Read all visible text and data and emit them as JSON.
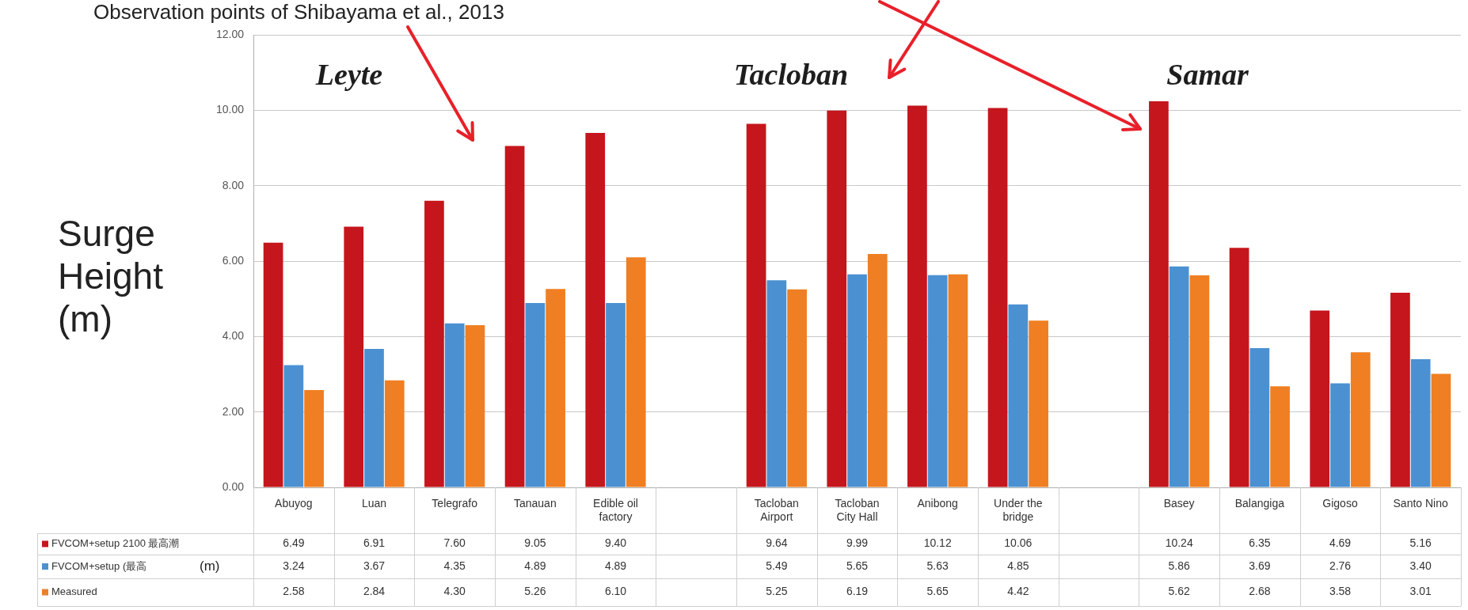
{
  "chart_data": {
    "type": "bar",
    "title": "Observation points of Shibayama et al., 2013",
    "ylabel": "Surge Height (m)",
    "categories": [
      "Abuyog",
      "Luan",
      "Telegrafo",
      "Tanauan",
      "Edible oil factory",
      null,
      "Tacloban Airport",
      "Tacloban City Hall",
      "Anibong",
      "Under the bridge",
      null,
      "Basey",
      "Balangiga",
      "Gigoso",
      "Santo Nino"
    ],
    "series": [
      {
        "name": "FVCOM+setup 2100 最高潮",
        "color": "#c4161c",
        "values": [
          6.49,
          6.91,
          7.6,
          9.05,
          9.4,
          null,
          9.64,
          9.99,
          10.12,
          10.06,
          null,
          10.24,
          6.35,
          4.69,
          5.16
        ],
        "value_labels": [
          "6.49",
          "6.91",
          "7.60",
          "9.05",
          "9.40",
          null,
          "9.64",
          "9.99",
          "10.12",
          "10.06",
          null,
          "10.24",
          "6.35",
          "4.69",
          "5.16"
        ]
      },
      {
        "name": "FVCOM+setup (最高",
        "color": "#4b91d2",
        "values": [
          3.24,
          3.67,
          4.35,
          4.89,
          4.89,
          null,
          5.49,
          5.65,
          5.63,
          4.85,
          null,
          5.86,
          3.69,
          2.76,
          3.4
        ],
        "value_labels": [
          "3.24",
          "3.67",
          "4.35",
          "4.89",
          "4.89",
          null,
          "5.49",
          "5.65",
          "5.63",
          "4.85",
          null,
          "5.86",
          "3.69",
          "2.76",
          "3.40"
        ]
      },
      {
        "name": "Measured",
        "color": "#ef7f22",
        "values": [
          2.58,
          2.84,
          4.3,
          5.26,
          6.1,
          null,
          5.25,
          6.19,
          5.65,
          4.42,
          null,
          5.62,
          2.68,
          3.58,
          3.01
        ],
        "value_labels": [
          "2.58",
          "2.84",
          "4.30",
          "5.26",
          "6.10",
          null,
          "5.25",
          "6.19",
          "5.65",
          "4.42",
          null,
          "5.62",
          "2.68",
          "3.58",
          "3.01"
        ]
      }
    ],
    "ylim": [
      0,
      12
    ],
    "yticks": [
      {
        "value": 0,
        "label": "0.00"
      },
      {
        "value": 2,
        "label": "2.00"
      },
      {
        "value": 4,
        "label": "4.00"
      },
      {
        "value": 6,
        "label": "6.00"
      },
      {
        "value": 8,
        "label": "8.00"
      },
      {
        "value": 10,
        "label": "10.00"
      },
      {
        "value": 12,
        "label": "12.00"
      }
    ],
    "grid": "y",
    "legend": "bottom left",
    "annotations": [
      "Leyte",
      "Tacloban",
      "Samar",
      "(m)"
    ]
  }
}
